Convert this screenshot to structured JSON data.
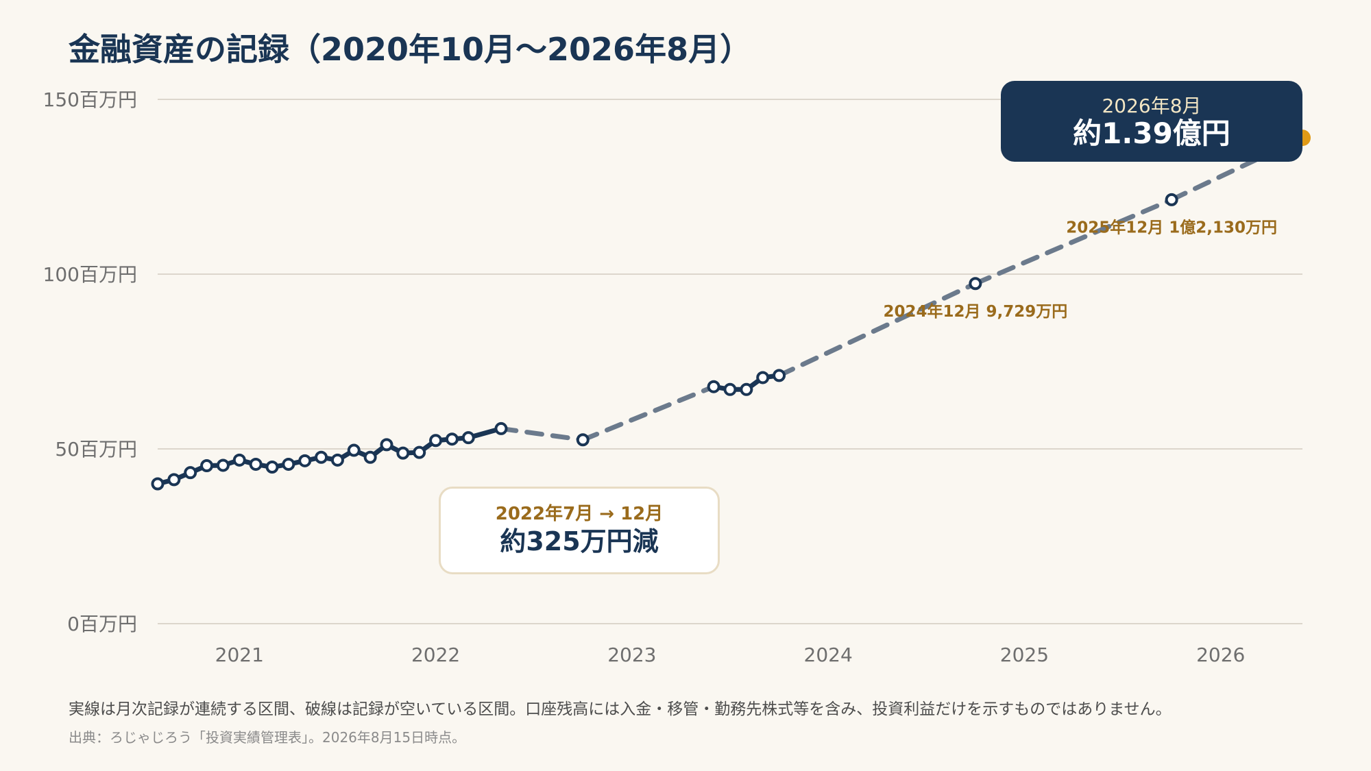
{
  "title": "金融資産の記録（2020年10月〜2026年8月）",
  "chart_data": {
    "type": "line",
    "title": "金融資産の記録（2020年10月〜2026年8月）",
    "xlabel": "",
    "ylabel": "",
    "y_unit": "百万円",
    "ylim": [
      0,
      150
    ],
    "yticks": [
      {
        "value": 0,
        "label": "0百万円"
      },
      {
        "value": 50,
        "label": "50百万円"
      },
      {
        "value": 100,
        "label": "100百万円"
      },
      {
        "value": 150,
        "label": "150百万円"
      }
    ],
    "xlim": [
      "2020-10",
      "2026-08"
    ],
    "xticks": [
      "2021",
      "2022",
      "2023",
      "2024",
      "2025",
      "2026"
    ],
    "grid": "horizontal",
    "line_color": "#1a3554",
    "gap_color": "#6b7a8c",
    "end_marker_color": "#e09a16",
    "series": [
      {
        "style": "solid",
        "points": [
          [
            "2020-10",
            40.0
          ],
          [
            "2020-11",
            41.2
          ],
          [
            "2020-12",
            43.2
          ],
          [
            "2021-01",
            45.2
          ],
          [
            "2021-02",
            45.3
          ],
          [
            "2021-03",
            46.8
          ],
          [
            "2021-04",
            45.6
          ],
          [
            "2021-05",
            44.8
          ],
          [
            "2021-06",
            45.6
          ],
          [
            "2021-07",
            46.6
          ],
          [
            "2021-08",
            47.6
          ],
          [
            "2021-09",
            46.8
          ],
          [
            "2021-10",
            49.6
          ],
          [
            "2021-11",
            47.6
          ],
          [
            "2021-12",
            51.2
          ],
          [
            "2022-01",
            48.8
          ],
          [
            "2022-02",
            49.0
          ],
          [
            "2022-03",
            52.4
          ],
          [
            "2022-04",
            52.8
          ],
          [
            "2022-05",
            53.2
          ],
          [
            "2022-07",
            55.8
          ]
        ]
      },
      {
        "style": "solid",
        "points": [
          [
            "2023-08",
            67.8
          ],
          [
            "2023-09",
            67.0
          ],
          [
            "2023-10",
            67.0
          ],
          [
            "2023-11",
            70.4
          ],
          [
            "2023-12",
            71.0
          ]
        ]
      }
    ],
    "gap_segments": [
      [
        [
          "2022-07",
          55.8
        ],
        [
          "2022-12",
          52.6
        ]
      ],
      [
        [
          "2022-12",
          52.6
        ],
        [
          "2023-08",
          67.8
        ]
      ],
      [
        [
          "2023-12",
          71.0
        ],
        [
          "2024-12",
          97.3
        ]
      ],
      [
        [
          "2024-12",
          97.3
        ],
        [
          "2025-12",
          121.3
        ]
      ],
      [
        [
          "2025-12",
          121.3
        ],
        [
          "2026-08",
          139.0
        ]
      ]
    ],
    "gap_points": [
      [
        "2022-12",
        52.6
      ],
      [
        "2024-12",
        97.3
      ],
      [
        "2025-12",
        121.3
      ]
    ],
    "end_point": [
      "2026-08",
      139.0
    ],
    "annotations": [
      {
        "at": [
          "2024-12",
          97.3
        ],
        "text": "2024年12月 9,729万円"
      },
      {
        "at": [
          "2025-12",
          121.3
        ],
        "text": "2025年12月 1億2,130万円"
      }
    ]
  },
  "callout_end": {
    "sub": "2026年8月",
    "main": "約1.39億円"
  },
  "callout_drop": {
    "sub": "2022年7月 → 12月",
    "main": "約325万円減"
  },
  "note": "実線は月次記録が連続する区間、破線は記録が空いている区間。口座残高には入金・移管・勤務先株式等を含み、投資利益だけを示すものではありません。",
  "source": "出典：ろじゃじろう「投資実績管理表」。2026年8月15日時点。"
}
